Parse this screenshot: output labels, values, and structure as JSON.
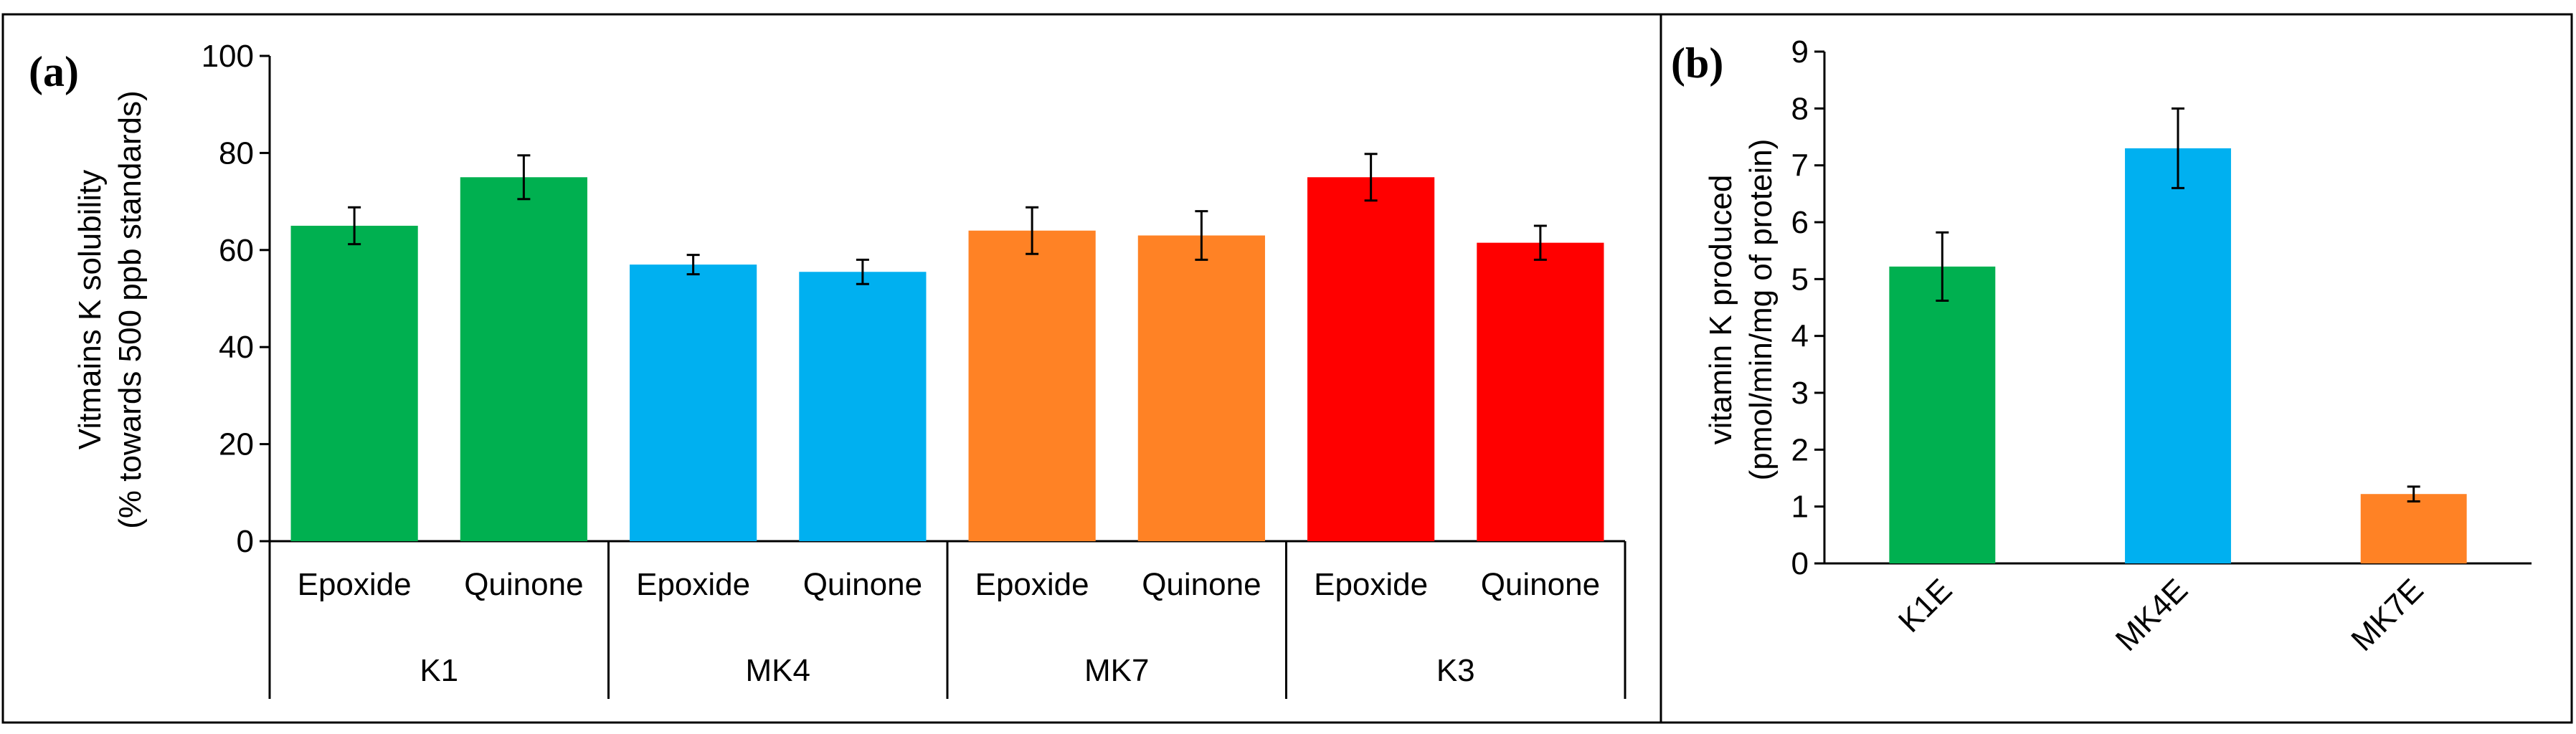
{
  "chart_data": [
    {
      "type": "bar",
      "panel_label": "(a)",
      "title": "",
      "ylabel_line1": "Vitmains K solubility",
      "ylabel_line2": "(% towards 500 ppb standards)",
      "ylim": [
        0,
        100
      ],
      "yticks": [
        "0",
        "20",
        "40",
        "60",
        "80",
        "100"
      ],
      "groups": [
        {
          "name": "K1",
          "color": "#00B050",
          "bars": [
            {
              "category": "Epoxide",
              "value": 65,
              "error": 3.8
            },
            {
              "category": "Quinone",
              "value": 75,
              "error": 4.5
            }
          ]
        },
        {
          "name": "MK4",
          "color": "#00B0F0",
          "bars": [
            {
              "category": "Epoxide",
              "value": 57,
              "error": 2.0
            },
            {
              "category": "Quinone",
              "value": 55.5,
              "error": 2.5
            }
          ]
        },
        {
          "name": "MK7",
          "color": "#FF8225",
          "bars": [
            {
              "category": "Epoxide",
              "value": 64,
              "error": 4.8
            },
            {
              "category": "Quinone",
              "value": 63,
              "error": 5.0
            }
          ]
        },
        {
          "name": "K3",
          "color": "#FF0000",
          "bars": [
            {
              "category": "Epoxide",
              "value": 75,
              "error": 4.8
            },
            {
              "category": "Quinone",
              "value": 61.5,
              "error": 3.5
            }
          ]
        }
      ]
    },
    {
      "type": "bar",
      "panel_label": "(b)",
      "title": "",
      "ylabel_line1": "vitamin K produced",
      "ylabel_line2": "(pmol/min/mg of protein)",
      "ylim": [
        0,
        9
      ],
      "yticks": [
        "0",
        "1",
        "2",
        "3",
        "4",
        "5",
        "6",
        "7",
        "8",
        "9"
      ],
      "bars": [
        {
          "category": "K1E",
          "value": 5.22,
          "error": 0.6,
          "color": "#00B050"
        },
        {
          "category": "MK4E",
          "value": 7.3,
          "error": 0.7,
          "color": "#00B0F0"
        },
        {
          "category": "MK7E",
          "value": 1.22,
          "error": 0.13,
          "color": "#FF8225"
        }
      ]
    }
  ]
}
